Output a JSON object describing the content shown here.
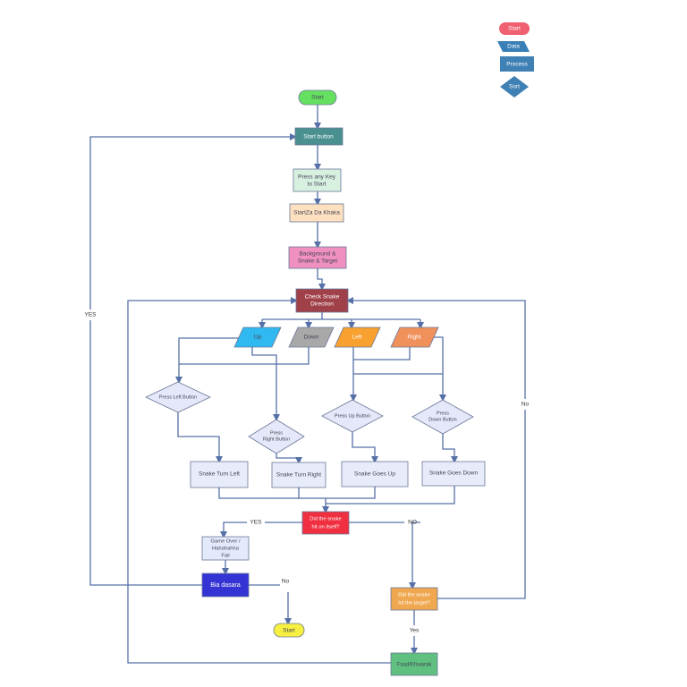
{
  "legend": {
    "start": "Start",
    "data": "Data",
    "process": "Process",
    "sort": "Sort"
  },
  "nodes": {
    "start": "Start",
    "start_button": "Start button",
    "press_any_key": [
      "Press any Key",
      "to Start"
    ],
    "start_za": "StartZa Da Khaka",
    "background": [
      "Background &",
      "Snake & Target"
    ],
    "check_direction": [
      "Check Snake",
      "Direction"
    ],
    "up": "Up",
    "down": "Down",
    "left": "Left",
    "right": "Right",
    "press_left": "Press Left  Button",
    "press_right": [
      "Press",
      "Right  Button"
    ],
    "press_up": "Press Up  Button",
    "press_down": [
      "Press",
      "Down  Button"
    ],
    "turn_left": "Snake Turn Left",
    "turn_right": "Snake Turn Right",
    "goes_up": "Snake Goes Up",
    "goes_down": "Snake Goes Down",
    "hit_itself": [
      "Did the snake",
      "hit on itself?"
    ],
    "game_over": [
      "Game Over /",
      "Hahahahha",
      "Fail"
    ],
    "bia_dasara": "Bia dasara",
    "end_start": "Start",
    "hit_target": [
      "Did the snake",
      "hit the target?"
    ],
    "food": "Food/Khwarak"
  },
  "edge_labels": {
    "yes_restart": "YES",
    "yes_itself": "YES",
    "no_itself": "NO",
    "no_bia": "No",
    "no_target": "No",
    "yes_target": "Yes"
  },
  "colors": {
    "edge": "#5670a8",
    "start_green": "#66e060",
    "start_button": "#4a9090",
    "check_direction": "#a04048",
    "hit_itself": "#f03040",
    "bia_dasara": "#3030d0",
    "end_start": "#f8f040",
    "hit_target": "#f0a850",
    "food": "#60c080"
  }
}
